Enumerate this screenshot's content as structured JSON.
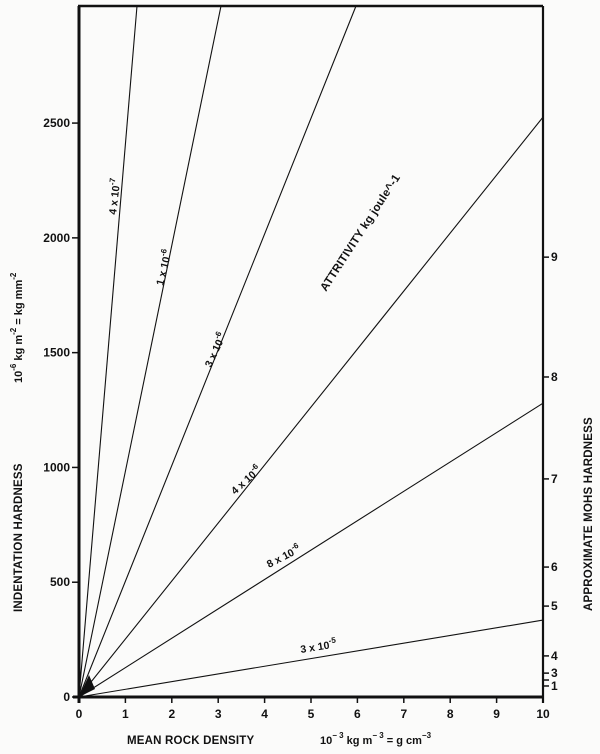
{
  "chart_data": {
    "type": "line",
    "title": "",
    "xlabel": "MEAN ROCK DENSITY",
    "xlabel_units": "10^-3 kg m^-3 = g cm^-3",
    "ylabel": "INDENTATION HARDNESS",
    "ylabel_units": "10^-6 kg m^-2 = kg mm^-2",
    "y2label": "APPROXIMATE MOHS HARDNESS",
    "annotation": "ATTRITIVITY kg joule^-1",
    "xlim": [
      0,
      10
    ],
    "ylim": [
      0,
      3010
    ],
    "x_ticks": [
      0,
      1,
      2,
      3,
      4,
      5,
      6,
      7,
      8,
      9,
      10
    ],
    "y_ticks": [
      0,
      500,
      1000,
      1500,
      2000,
      2500
    ],
    "grid": false,
    "legend": "none (lines labelled inline)",
    "mohs_scale": [
      {
        "label": "1",
        "indentation_hardness": 48
      },
      {
        "label": "",
        "indentation_hardness": 74
      },
      {
        "label": "3",
        "indentation_hardness": 104
      },
      {
        "label": "4",
        "indentation_hardness": 179
      },
      {
        "label": "5",
        "indentation_hardness": 396
      },
      {
        "label": "6",
        "indentation_hardness": 566
      },
      {
        "label": "7",
        "indentation_hardness": 950
      },
      {
        "label": "8",
        "indentation_hardness": 1394
      },
      {
        "label": "9",
        "indentation_hardness": 1916
      }
    ],
    "series": [
      {
        "name": "4 x 10^-7",
        "label_base": "4 x 10",
        "label_exp": "-7",
        "x": [
          0,
          1.25
        ],
        "y": [
          0,
          3010
        ]
      },
      {
        "name": "1 x 10^-6",
        "label_base": "1 x 10",
        "label_exp": "-6",
        "x": [
          0,
          3.06
        ],
        "y": [
          0,
          3010
        ]
      },
      {
        "name": "3 x 10^-6",
        "label_base": "3 x 10",
        "label_exp": "-6",
        "x": [
          0,
          5.97
        ],
        "y": [
          0,
          3010
        ]
      },
      {
        "name": "4 x 10^-6",
        "label_base": "4 x 10",
        "label_exp": "-6",
        "x": [
          0,
          10
        ],
        "y": [
          0,
          2526
        ]
      },
      {
        "name": "8 x 10^-6",
        "label_base": "8 x 10",
        "label_exp": "-6",
        "x": [
          0,
          10
        ],
        "y": [
          0,
          1280
        ]
      },
      {
        "name": "3 x 10^-5",
        "label_base": "3 x 10",
        "label_exp": "-5",
        "x": [
          0,
          10
        ],
        "y": [
          0,
          335
        ]
      }
    ]
  }
}
